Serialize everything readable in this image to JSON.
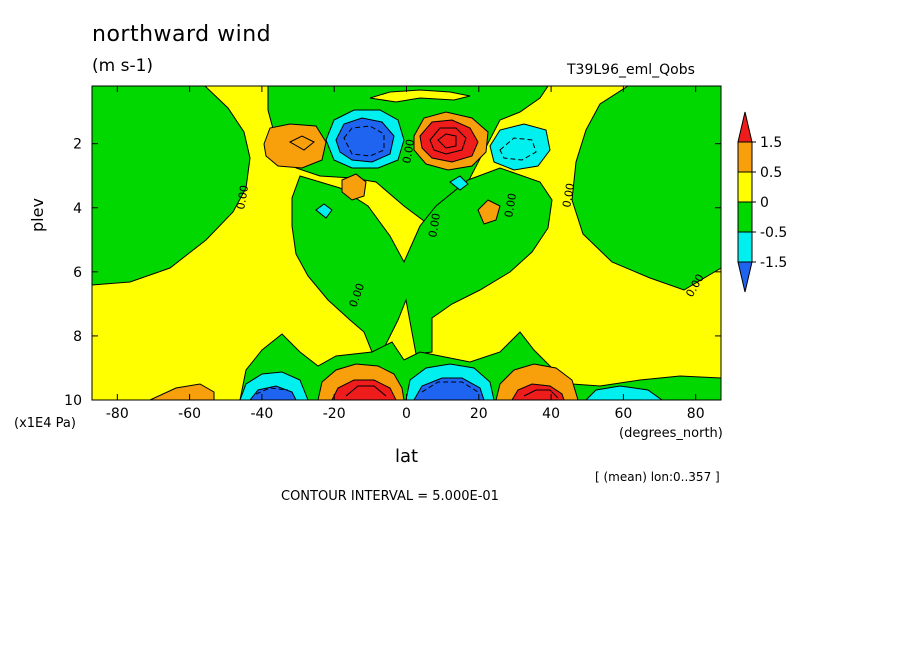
{
  "chart_data": {
    "type": "contour",
    "title": "northward wind",
    "units": "(m s-1)",
    "run_name": "T39L96_eml_Qobs",
    "xlabel": "lat",
    "x_units": "(degrees_north)",
    "ylabel": "plev",
    "y_units": "(x1E4 Pa)",
    "averaging_note": "[ (mean) lon:0..357 ]",
    "contour_interval_text": "CONTOUR INTERVAL = 5.000E-01",
    "xlim": [
      -87,
      87
    ],
    "ylim": [
      10,
      0.2
    ],
    "x_ticks": [
      "-80",
      "-60",
      "-40",
      "-20",
      "0",
      "20",
      "40",
      "60",
      "80"
    ],
    "x_tick_values": [
      -80,
      -60,
      -40,
      -20,
      0,
      20,
      40,
      60,
      80
    ],
    "y_ticks": [
      "2",
      "4",
      "6",
      "8",
      "10"
    ],
    "y_tick_values": [
      2,
      4,
      6,
      8,
      10
    ],
    "contour_labels": [
      "0.00",
      "0.00",
      "0.00",
      "0.00",
      "0.00",
      "0.00",
      "0.00"
    ],
    "colorbar": {
      "labels": [
        "1.5",
        "0.5",
        "0",
        "-0.5",
        "-1.5"
      ],
      "colors": [
        "#ef1c1c",
        "#f7a00b",
        "#ffff00",
        "#00d800",
        "#00f0f0",
        "#1e64f0"
      ]
    },
    "background_color": "#ffff00",
    "regions": [
      {
        "id": "green-west",
        "color": "#00d800"
      },
      {
        "id": "green-east",
        "color": "#00d800"
      },
      {
        "id": "green-center",
        "color": "#00d800"
      },
      {
        "id": "green-upper-center",
        "color": "#00d800"
      },
      {
        "id": "green-bottom",
        "color": "#00d800"
      },
      {
        "id": "min-upper-south",
        "color": "#1e64f0",
        "value": -2.0
      },
      {
        "id": "max-upper-north",
        "color": "#ef1c1c",
        "value": 2.0
      },
      {
        "id": "min-lower-equator",
        "color": "#1e64f0",
        "value": -2.0
      },
      {
        "id": "max-lower-south",
        "color": "#ef1c1c",
        "value": 2.0
      },
      {
        "id": "max-lower-north",
        "color": "#ef1c1c",
        "value": 2.0
      },
      {
        "id": "min-lower-south-40",
        "color": "#1e64f0",
        "value": -1.5
      }
    ]
  }
}
